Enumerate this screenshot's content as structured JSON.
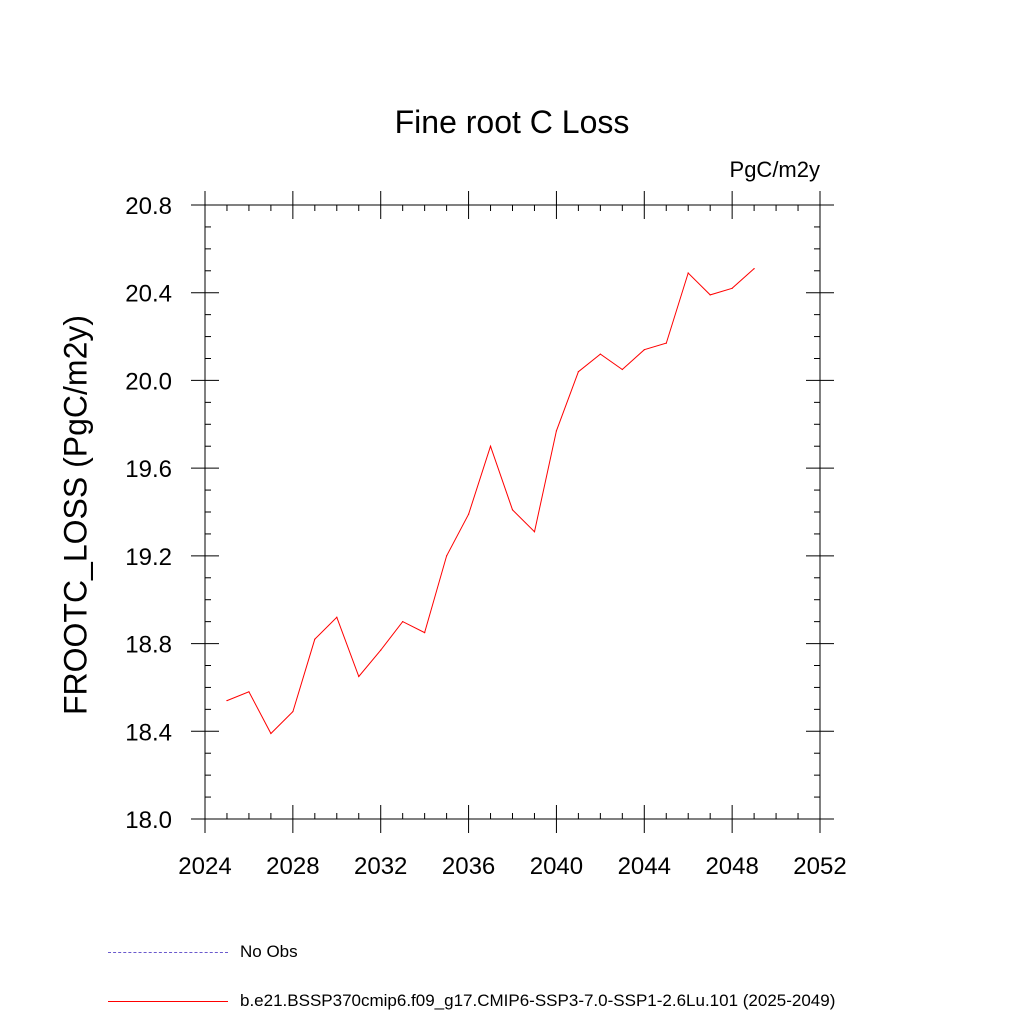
{
  "chart_data": {
    "type": "line",
    "title": "Fine root C Loss",
    "units_label": "PgC/m2y",
    "ylabel": "FROOTC_LOSS  (PgC/m2y)",
    "xlabel": "",
    "xlim": [
      2024,
      2052
    ],
    "ylim": [
      18.0,
      20.8
    ],
    "x_major_ticks": [
      2024,
      2028,
      2032,
      2036,
      2040,
      2044,
      2048,
      2052
    ],
    "x_tick_labels": [
      "2024",
      "2028",
      "2032",
      "2036",
      "2040",
      "2044",
      "2048",
      "2052"
    ],
    "y_major_ticks": [
      18.0,
      18.4,
      18.8,
      19.2,
      19.6,
      20.0,
      20.4,
      20.8
    ],
    "y_tick_labels": [
      "18.0",
      "18.4",
      "18.8",
      "19.2",
      "19.6",
      "20.0",
      "20.4",
      "20.8"
    ],
    "x_minor_step": 1,
    "y_minor_step": 0.1,
    "grid": false,
    "legend_position": "bottom",
    "series": [
      {
        "name": "b.e21.BSSP370cmip6.f09_g17.CMIP6-SSP3-7.0-SSP1-2.6Lu.101 (2025-2049)",
        "color": "#ff0000",
        "dash": "solid",
        "x": [
          2025,
          2026,
          2027,
          2028,
          2029,
          2030,
          2031,
          2032,
          2033,
          2034,
          2035,
          2036,
          2037,
          2038,
          2039,
          2040,
          2041,
          2042,
          2043,
          2044,
          2045,
          2046,
          2047,
          2048,
          2049
        ],
        "y": [
          18.54,
          18.58,
          18.39,
          18.49,
          18.82,
          18.92,
          18.65,
          18.77,
          18.9,
          18.85,
          19.2,
          19.39,
          19.7,
          19.41,
          19.31,
          19.77,
          20.04,
          20.12,
          20.05,
          20.14,
          20.17,
          20.49,
          20.39,
          20.42,
          20.51
        ]
      }
    ],
    "legend": [
      {
        "label": "No Obs",
        "color": "#6a5acd",
        "dash": "dashed"
      },
      {
        "label": "b.e21.BSSP370cmip6.f09_g17.CMIP6-SSP3-7.0-SSP1-2.6Lu.101 (2025-2049)",
        "color": "#ff0000",
        "dash": "solid"
      }
    ]
  }
}
